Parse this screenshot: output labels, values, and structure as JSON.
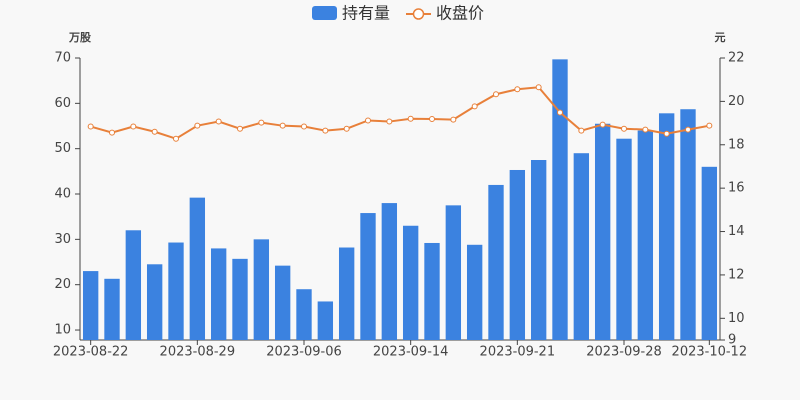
{
  "chart_data": {
    "type": "bar-line",
    "categories": [
      "2023-08-22",
      null,
      null,
      null,
      null,
      "2023-08-29",
      null,
      null,
      null,
      null,
      "2023-09-06",
      null,
      null,
      null,
      null,
      "2023-09-14",
      null,
      null,
      null,
      null,
      "2023-09-21",
      null,
      null,
      null,
      null,
      "2023-09-28",
      null,
      null,
      null,
      "2023-10-12"
    ],
    "series": [
      {
        "name": "持有量",
        "type": "bar",
        "color": "#3b82e0",
        "axis": "y",
        "values": [
          23,
          21.3,
          32,
          24.5,
          29.3,
          39.2,
          28,
          25.7,
          30,
          24.2,
          19,
          16.3,
          28.2,
          35.8,
          38,
          33,
          29.2,
          37.5,
          28.8,
          42,
          45.3,
          47.5,
          69.7,
          49,
          55.5,
          52.2,
          54,
          57.8,
          58.7,
          46
        ]
      },
      {
        "name": "收盘价",
        "type": "line",
        "color": "#e8803a",
        "axis": "y2",
        "values": [
          18.84,
          18.56,
          18.84,
          18.6,
          18.28,
          18.88,
          19.07,
          18.74,
          19.02,
          18.88,
          18.84,
          18.65,
          18.74,
          19.12,
          19.07,
          19.2,
          19.19,
          19.16,
          19.77,
          20.33,
          20.56,
          20.65,
          19.49,
          18.65,
          18.93,
          18.74,
          18.7,
          18.51,
          18.7,
          18.88
        ]
      }
    ],
    "y_label": "万股",
    "y2_label": "元",
    "ylim": [
      7.8,
      70
    ],
    "yticks": [
      10,
      20,
      30,
      40,
      50,
      60,
      70
    ],
    "y2lim": [
      9,
      22
    ],
    "y2ticks": [
      9,
      10,
      12,
      14,
      16,
      18,
      20,
      22
    ],
    "legend": "top"
  }
}
